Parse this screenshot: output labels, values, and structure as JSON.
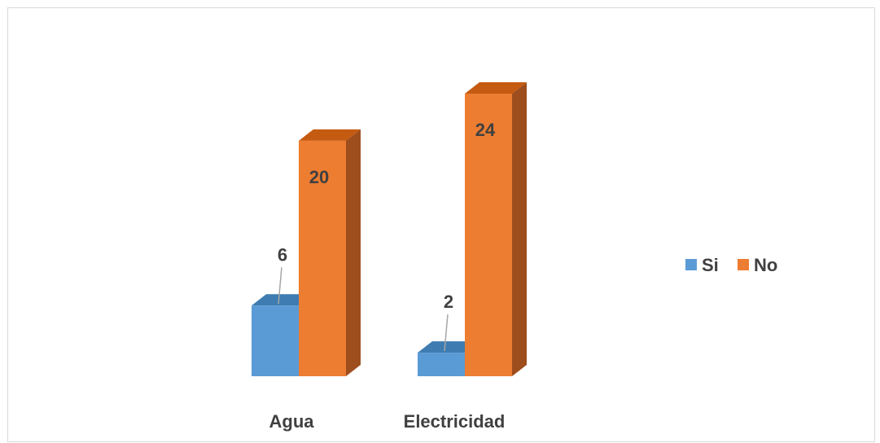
{
  "chart_data": {
    "type": "bar",
    "style": "3d-clustered-column",
    "categories": [
      "Agua",
      "Electricidad"
    ],
    "series": [
      {
        "name": "Si",
        "values": [
          6,
          2
        ],
        "color": "#5b9bd5",
        "side_color": "#41719c",
        "top_color": "#3e7cb1"
      },
      {
        "name": "No",
        "values": [
          20,
          24
        ],
        "color": "#ed7d31",
        "side_color": "#9e4d1c",
        "top_color": "#c55a11"
      }
    ],
    "ylim": [
      0,
      24
    ],
    "grid": false,
    "legend_position": "right",
    "data_labels": true
  }
}
